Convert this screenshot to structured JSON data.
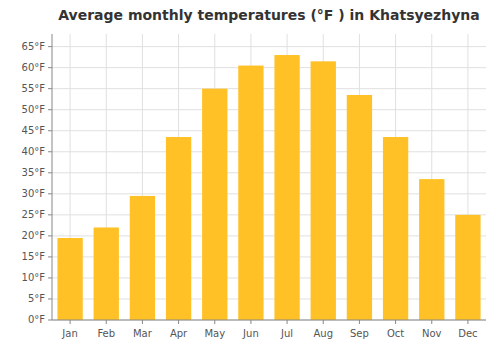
{
  "chart_data": {
    "type": "bar",
    "title": "Average monthly temperatures (°F ) in Khatsyezhyna",
    "categories": [
      "Jan",
      "Feb",
      "Mar",
      "Apr",
      "May",
      "Jun",
      "Jul",
      "Aug",
      "Sep",
      "Oct",
      "Nov",
      "Dec"
    ],
    "values": [
      19.5,
      22,
      29.5,
      43.5,
      55,
      60.5,
      63,
      61.5,
      53.5,
      43.5,
      33.5,
      25
    ],
    "color": "#FFC125",
    "ylim": [
      0,
      68
    ],
    "yticks": [
      {
        "value": 0,
        "label": "0°F"
      },
      {
        "value": 5,
        "label": "5°F"
      },
      {
        "value": 10,
        "label": "10°F"
      },
      {
        "value": 15,
        "label": "15°F"
      },
      {
        "value": 20,
        "label": "20°F"
      },
      {
        "value": 25,
        "label": "25°F"
      },
      {
        "value": 30,
        "label": "30°F"
      },
      {
        "value": 35,
        "label": "35°F"
      },
      {
        "value": 40,
        "label": "40°F"
      },
      {
        "value": 45,
        "label": "45°F"
      },
      {
        "value": 50,
        "label": "50°F"
      },
      {
        "value": 55,
        "label": "55°F"
      },
      {
        "value": 60,
        "label": "60°F"
      },
      {
        "value": 65,
        "label": "65°F"
      }
    ],
    "grid": true
  }
}
